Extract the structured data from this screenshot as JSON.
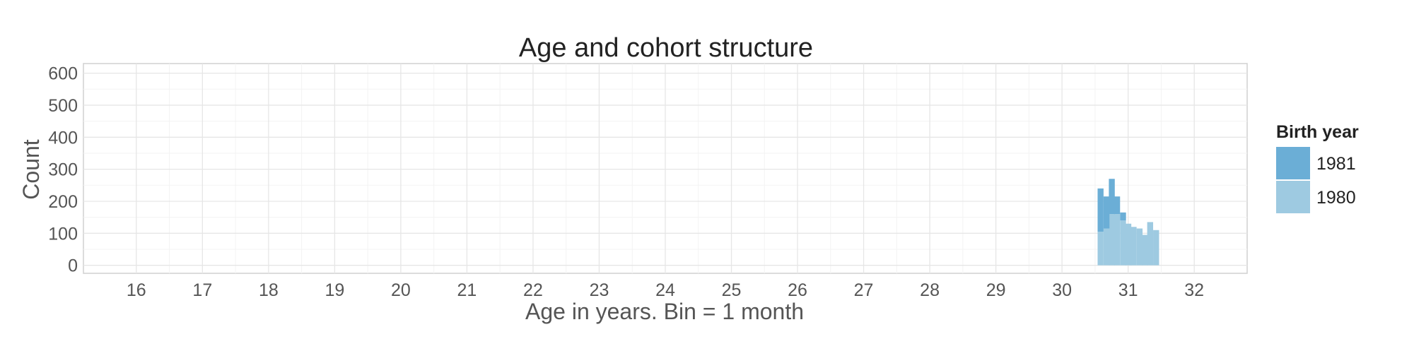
{
  "chart_data": {
    "type": "bar",
    "stacked": true,
    "title": "Age and cohort structure",
    "xlabel": "Age in years. Bin = 1 month",
    "ylabel": "Count",
    "xlim": [
      15.2,
      32.8
    ],
    "ylim": [
      -25,
      630
    ],
    "x_ticks": [
      16,
      17,
      18,
      19,
      20,
      21,
      22,
      23,
      24,
      25,
      26,
      27,
      28,
      29,
      30,
      31,
      32
    ],
    "y_ticks": [
      0,
      100,
      200,
      300,
      400,
      500,
      600
    ],
    "grid": true,
    "legend": {
      "title": "Birth year",
      "position": "right"
    },
    "bin_width_years": 0.0833,
    "x": [
      30.58,
      30.67,
      30.75,
      30.83,
      30.92,
      31.0,
      31.08,
      31.17,
      31.25,
      31.33,
      31.42,
      31.5
    ],
    "series": [
      {
        "name": "1980",
        "color": "#9ecae1",
        "values": [
          105,
          115,
          160,
          160,
          140,
          130,
          120,
          115,
          95,
          135,
          110,
          0
        ]
      },
      {
        "name": "1981",
        "color": "#6baed6",
        "values": [
          135,
          100,
          110,
          55,
          25,
          0,
          0,
          0,
          0,
          0,
          0,
          0
        ]
      }
    ]
  }
}
